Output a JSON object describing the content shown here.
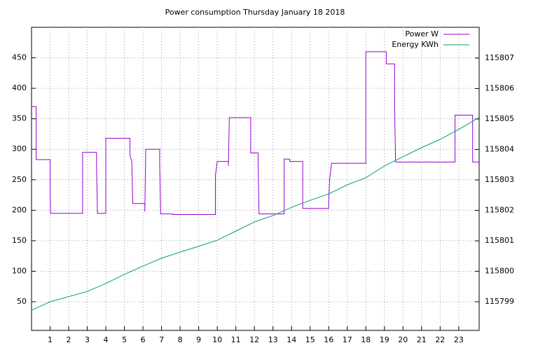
{
  "chart_data": {
    "type": "line",
    "title": "Power consumption Thursday January 18 2018",
    "xlim": [
      0,
      24.1
    ],
    "xticks": [
      1,
      2,
      3,
      4,
      5,
      6,
      7,
      8,
      9,
      10,
      11,
      12,
      13,
      14,
      15,
      16,
      17,
      18,
      19,
      20,
      21,
      22,
      23
    ],
    "ylim": [
      3,
      500
    ],
    "yticks": [
      50,
      100,
      150,
      200,
      250,
      300,
      350,
      400,
      450
    ],
    "y2lim": [
      115798.06,
      115808.01
    ],
    "y2ticks": [
      115799,
      115800,
      115801,
      115802,
      115803,
      115804,
      115805,
      115806,
      115807
    ],
    "grid": true,
    "legend": "top-right",
    "series": [
      {
        "name": "Power W",
        "color": "#9400d3",
        "x": [
          0,
          0.25,
          0.25,
          1.0,
          1.0,
          1.02,
          2.75,
          2.75,
          3.5,
          3.5,
          3.55,
          4.0,
          4.0,
          5.3,
          5.3,
          5.4,
          5.45,
          6.1,
          6.1,
          6.15,
          6.9,
          6.9,
          6.95,
          7.6,
          7.6,
          9.9,
          9.9,
          10.0,
          10.6,
          10.6,
          10.65,
          11.8,
          11.8,
          12.2,
          12.2,
          12.25,
          13.6,
          13.6,
          13.9,
          13.9,
          14.6,
          14.6,
          16.0,
          16.0,
          16.05,
          16.15,
          18.0,
          18.0,
          19.1,
          19.1,
          19.55,
          19.55,
          19.6,
          22.8,
          22.8,
          23.75,
          23.75,
          24.1
        ],
        "values": [
          370,
          370,
          283,
          283,
          262,
          195,
          195,
          295,
          295,
          275,
          195,
          195,
          318,
          318,
          290,
          280,
          211,
          211,
          198,
          300,
          300,
          275,
          194,
          194,
          193,
          193,
          257,
          280,
          280,
          273,
          352,
          352,
          294,
          294,
          277,
          194,
          194,
          284,
          284,
          280,
          280,
          203,
          203,
          213,
          250,
          277,
          277,
          460,
          460,
          440,
          440,
          365,
          279,
          279,
          356,
          356,
          279,
          279
        ]
      },
      {
        "name": "Energy KWh",
        "color": "#009e73",
        "axis": "y2",
        "x": [
          0,
          1,
          3,
          4,
          5,
          6,
          7,
          8,
          9,
          10,
          11,
          12,
          13,
          14,
          15,
          16,
          17,
          18,
          19,
          20,
          21,
          22,
          23,
          24.1
        ],
        "values": [
          115798.72,
          115799.0,
          115799.34,
          115799.6,
          115799.9,
          115800.17,
          115800.43,
          115800.63,
          115800.82,
          115801.02,
          115801.32,
          115801.62,
          115801.83,
          115802.1,
          115802.33,
          115802.54,
          115802.84,
          115803.07,
          115803.46,
          115803.76,
          115804.06,
          115804.33,
          115804.66,
          115805.05
        ]
      }
    ]
  }
}
